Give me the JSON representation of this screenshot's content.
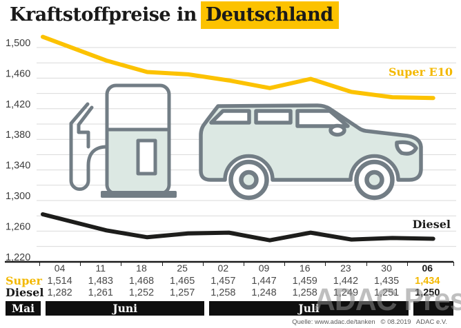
{
  "title": {
    "prefix": "Kraftstoffpreise in",
    "highlight": "Deutschland"
  },
  "colors": {
    "accent_yellow": "#FCC200",
    "diesel_black": "#1D1D1B",
    "grid": "#D9D9D9",
    "axis": "#1A1A1A",
    "vehicle_stroke": "#727D85",
    "vehicle_fill": "#DCE8E3",
    "month_bar": "#0F0F0F"
  },
  "chart_data": {
    "type": "line",
    "x_tick_labels": [
      "04",
      "11",
      "18",
      "25",
      "02",
      "09",
      "16",
      "23",
      "30",
      "06"
    ],
    "y_ticks_labeled": [
      1500,
      1460,
      1420,
      1380,
      1340,
      1300,
      1260,
      1220
    ],
    "y_tick_label_texts": [
      "1,500",
      "1,460",
      "1,420",
      "1,380",
      "1,340",
      "1,300",
      "1,260",
      "1,220"
    ],
    "y_minor_step": 20,
    "ylim": [
      1220,
      1520
    ],
    "grid": "horizontal-only",
    "legend_position": "inline-right",
    "series": [
      {
        "name": "Super E10",
        "color": "#FCC200",
        "values": [
          1514,
          1483,
          1468,
          1465,
          1457,
          1447,
          1459,
          1442,
          1435,
          1434
        ]
      },
      {
        "name": "Diesel",
        "color": "#1D1D1B",
        "values": [
          1282,
          1261,
          1252,
          1257,
          1258,
          1248,
          1258,
          1249,
          1251,
          1250
        ]
      }
    ]
  },
  "table": {
    "super_label": "Super",
    "diesel_label": "Diesel",
    "dates": [
      "04",
      "11",
      "18",
      "25",
      "02",
      "09",
      "16",
      "23",
      "30",
      "06"
    ],
    "super_values": [
      "1,514",
      "1,483",
      "1,468",
      "1,465",
      "1,457",
      "1,447",
      "1,459",
      "1,442",
      "1,435",
      "1,434"
    ],
    "diesel_values": [
      "1,282",
      "1,261",
      "1,252",
      "1,257",
      "1,258",
      "1,248",
      "1,258",
      "1,249",
      "1,251",
      "1,250"
    ],
    "last_column_emphasized": true
  },
  "months": [
    {
      "label": "Mai",
      "cols": 0
    },
    {
      "label": "Juni",
      "cols": 4
    },
    {
      "label": "Juli",
      "cols": 5
    },
    {
      "label": "",
      "cols": 1
    }
  ],
  "source": "Quelle: www.adac.de/tanken   © 08.2019   ADAC e.V.",
  "watermark": "ADAC Presse"
}
